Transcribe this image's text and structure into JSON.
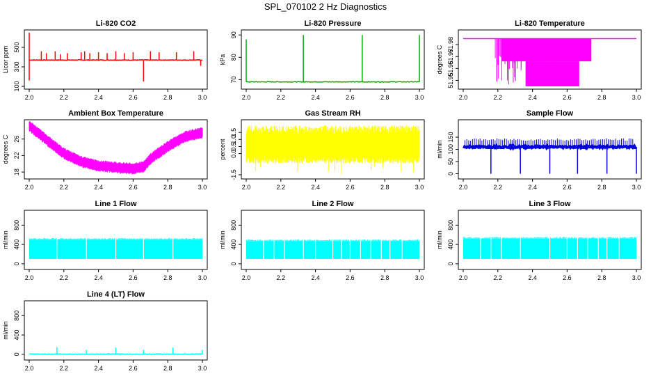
{
  "page": {
    "title": "SPL_070102  2 Hz Diagnostics"
  },
  "chart_data": [
    {
      "id": "co2",
      "type": "line",
      "title": "Li-820 CO2",
      "ylabel": "Licor ppm",
      "color": "#ff0000",
      "xlim": [
        2.0,
        3.0
      ],
      "ylim": [
        100,
        650
      ],
      "xticks": [
        2.0,
        2.2,
        2.4,
        2.6,
        2.8,
        3.0
      ],
      "yticks": [
        100,
        300,
        500
      ],
      "baseline": 370,
      "spikes": [
        [
          2.0,
          650
        ],
        [
          2.0,
          160
        ],
        [
          2.07,
          460
        ],
        [
          2.1,
          440
        ],
        [
          2.15,
          460
        ],
        [
          2.18,
          430
        ],
        [
          2.22,
          440
        ],
        [
          2.3,
          450
        ],
        [
          2.32,
          460
        ],
        [
          2.35,
          440
        ],
        [
          2.4,
          450
        ],
        [
          2.45,
          440
        ],
        [
          2.5,
          460
        ],
        [
          2.55,
          440
        ],
        [
          2.6,
          450
        ],
        [
          2.66,
          150
        ],
        [
          2.7,
          460
        ],
        [
          2.75,
          450
        ],
        [
          2.85,
          450
        ],
        [
          2.95,
          460
        ],
        [
          2.99,
          310
        ]
      ],
      "series": []
    },
    {
      "id": "pressure",
      "type": "line",
      "title": "Li-820 Pressure",
      "ylabel": "kPa",
      "color": "#00aa00",
      "xlim": [
        2.0,
        3.0
      ],
      "ylim": [
        67,
        91
      ],
      "xticks": [
        2.0,
        2.2,
        2.4,
        2.6,
        2.8,
        3.0
      ],
      "yticks": [
        70,
        80,
        90
      ],
      "baseline": 69,
      "spikes": [
        [
          2.0,
          88
        ],
        [
          2.33,
          90
        ],
        [
          2.67,
          90
        ],
        [
          3.0,
          90
        ]
      ],
      "series": []
    },
    {
      "id": "li820temp",
      "type": "line",
      "title": "Li-820 Temperature",
      "ylabel": "degrees C",
      "color": "#ff00ff",
      "xlim": [
        2.0,
        3.0
      ],
      "ylim": [
        51.945,
        51.99
      ],
      "xticks": [
        2.0,
        2.2,
        2.4,
        2.6,
        2.8,
        3.0
      ],
      "yticks": [
        51.95,
        51.96,
        51.97,
        51.98
      ],
      "baseline": 51.985,
      "spikes": [],
      "series": []
    },
    {
      "id": "ambient",
      "type": "line",
      "title": "Ambient Box Temperature",
      "ylabel": "degrees C",
      "color": "#ff00ff",
      "xlim": [
        2.0,
        3.0
      ],
      "ylim": [
        17,
        30
      ],
      "xticks": [
        2.0,
        2.2,
        2.4,
        2.6,
        2.8,
        3.0
      ],
      "yticks": [
        18,
        22,
        26
      ],
      "baseline": 22,
      "spikes": [],
      "series": [
        {
          "x": [
            2.0,
            2.1,
            2.2,
            2.3,
            2.4,
            2.5,
            2.6,
            2.66,
            2.7,
            2.8,
            2.9,
            3.0
          ],
          "y": [
            29.2,
            25.8,
            22.5,
            20.5,
            19.5,
            19.1,
            18.8,
            19.2,
            21.2,
            24.2,
            26.6,
            27.5
          ]
        }
      ]
    },
    {
      "id": "rh",
      "type": "line",
      "title": "Gas Stream RH",
      "ylabel": "percent",
      "color": "#ffff00",
      "xlim": [
        2.0,
        3.0
      ],
      "ylim": [
        -1.6,
        2.2
      ],
      "xticks": [
        2.0,
        2.2,
        2.4,
        2.6,
        2.8,
        3.0
      ],
      "yticks": [
        -1.5,
        -0.5,
        0.5,
        1.5
      ],
      "yticklabels": [
        "-1.5",
        "0.0",
        "0.5",
        "1.0",
        "1.5"
      ],
      "ytickvals": [
        -1.5,
        -0.0,
        0.5,
        1.0,
        1.5
      ],
      "baseline": 0.8,
      "spikes": [],
      "series": []
    },
    {
      "id": "sampleflow",
      "type": "line",
      "title": "Sample Flow",
      "ylabel": "ml/min",
      "color": "#0000dd",
      "xlim": [
        2.0,
        3.0
      ],
      "ylim": [
        -10,
        210
      ],
      "xticks": [
        2.0,
        2.2,
        2.4,
        2.6,
        2.8,
        3.0
      ],
      "yticks": [
        0,
        50,
        100,
        150
      ],
      "baseline": 110,
      "spikes": [
        [
          2.16,
          0
        ],
        [
          2.33,
          0
        ],
        [
          2.5,
          0
        ],
        [
          2.66,
          0
        ],
        [
          2.83,
          0
        ],
        [
          3.0,
          0
        ]
      ],
      "series": []
    },
    {
      "id": "line1",
      "type": "area",
      "title": "Line 1 Flow",
      "ylabel": "ml/min",
      "color": "#00ffff",
      "xlim": [
        2.0,
        3.0
      ],
      "ylim": [
        -60,
        1050
      ],
      "xticks": [
        2.0,
        2.2,
        2.4,
        2.6,
        2.8,
        3.0
      ],
      "yticks": [
        0,
        400,
        800
      ],
      "band": [
        100,
        500
      ],
      "gaps": [
        2.16,
        2.33,
        2.5,
        2.66,
        2.83
      ],
      "spikes": [],
      "series": []
    },
    {
      "id": "line2",
      "type": "area",
      "title": "Line 2 Flow",
      "ylabel": "ml/min",
      "color": "#00ffff",
      "xlim": [
        2.0,
        3.0
      ],
      "ylim": [
        -60,
        1050
      ],
      "xticks": [
        2.0,
        2.2,
        2.4,
        2.6,
        2.8,
        3.0
      ],
      "yticks": [
        0,
        400,
        800
      ],
      "band": [
        100,
        470
      ],
      "gaps": [
        2.1,
        2.16,
        2.22,
        2.33,
        2.4,
        2.5,
        2.55,
        2.6,
        2.66,
        2.72,
        2.78,
        2.83,
        2.9
      ],
      "spikes": [],
      "series": []
    },
    {
      "id": "line3",
      "type": "area",
      "title": "Line 3 Flow",
      "ylabel": "ml/min",
      "color": "#00ffff",
      "xlim": [
        2.0,
        3.0
      ],
      "ylim": [
        -60,
        1050
      ],
      "xticks": [
        2.0,
        2.2,
        2.4,
        2.6,
        2.8,
        3.0
      ],
      "yticks": [
        0,
        400,
        800
      ],
      "band": [
        100,
        520
      ],
      "gaps": [
        2.1,
        2.16,
        2.22,
        2.33,
        2.5,
        2.6,
        2.66,
        2.72,
        2.78,
        2.83,
        2.9
      ],
      "spikes": [],
      "series": []
    },
    {
      "id": "line4",
      "type": "line",
      "title": "Line 4 (LT) Flow",
      "ylabel": "ml/min",
      "color": "#00ffff",
      "xlim": [
        2.0,
        3.0
      ],
      "ylim": [
        -60,
        1050
      ],
      "xticks": [
        2.0,
        2.2,
        2.4,
        2.6,
        2.8,
        3.0
      ],
      "yticks": [
        0,
        400,
        800
      ],
      "baseline": 5,
      "spikes": [
        [
          2.16,
          150
        ],
        [
          2.33,
          90
        ],
        [
          2.5,
          140
        ],
        [
          2.66,
          90
        ],
        [
          2.83,
          140
        ],
        [
          3.0,
          90
        ]
      ],
      "series": []
    }
  ]
}
